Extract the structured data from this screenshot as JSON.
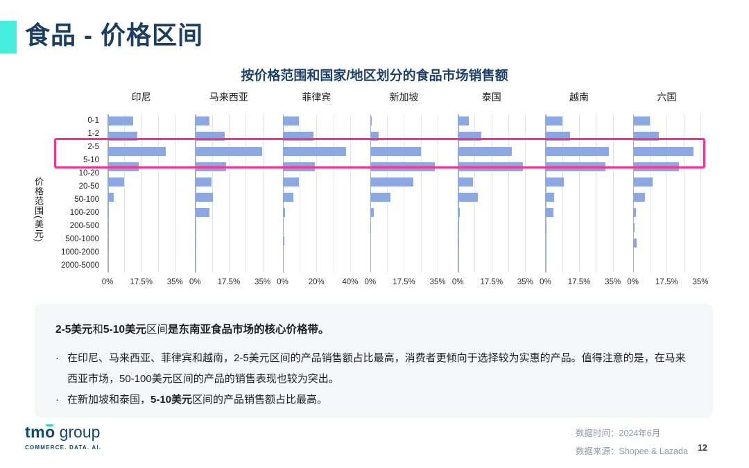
{
  "slide": {
    "title": "食品 - 价格区间",
    "chart_title": "按价格范围和国家/地区划分的食品市场销售额",
    "page_number": "12"
  },
  "chart_data": {
    "type": "bar",
    "orientation": "horizontal",
    "title": "按价格范围和国家/地区划分的食品市场销售额",
    "ylabel": "价格范围(美元)",
    "unit": "%",
    "grid": true,
    "categories": [
      "0-1",
      "1-2",
      "2-5",
      "5-10",
      "10-20",
      "20-50",
      "50-100",
      "100-200",
      "200-500",
      "500-1000",
      "1000-2000",
      "2000-5000"
    ],
    "series": [
      {
        "name": "印尼",
        "xlim": [
          0,
          35
        ],
        "ticks": [
          "0%",
          "17.5%",
          "35%"
        ],
        "values": [
          13.3,
          15.4,
          30.4,
          16.2,
          8.7,
          3.2,
          0.7,
          0.3,
          0.4,
          0,
          0,
          0
        ]
      },
      {
        "name": "马来西亚",
        "xlim": [
          0,
          35
        ],
        "ticks": [
          "0%",
          "17.5%",
          "35%"
        ],
        "values": [
          7.4,
          15.2,
          34.8,
          16.1,
          8.7,
          9.4,
          7.5,
          0.4,
          0.5,
          0,
          0,
          0
        ]
      },
      {
        "name": "菲律宾",
        "xlim": [
          0,
          40
        ],
        "ticks": [
          "0%",
          "20%",
          "40%"
        ],
        "values": [
          9.7,
          18.2,
          37.5,
          18.9,
          9.5,
          6.5,
          1.4,
          0,
          1.0,
          0,
          0,
          0
        ]
      },
      {
        "name": "新加坡",
        "xlim": [
          0,
          35
        ],
        "ticks": [
          "0%",
          "17.5%",
          "35%"
        ],
        "values": [
          0.7,
          4.3,
          26.3,
          33.5,
          22.2,
          10.6,
          1.7,
          0.4,
          0,
          0,
          0,
          0
        ]
      },
      {
        "name": "泰国",
        "xlim": [
          0,
          35
        ],
        "ticks": [
          "0%",
          "17.5%",
          "35%"
        ],
        "values": [
          5.8,
          12.3,
          28.0,
          33.7,
          8.0,
          10.4,
          1.2,
          0.3,
          0.5,
          0,
          0,
          0
        ]
      },
      {
        "name": "越南",
        "xlim": [
          0,
          35
        ],
        "ticks": [
          "0%",
          "17.5%",
          "35%"
        ],
        "values": [
          8.7,
          12.7,
          33.0,
          31.0,
          9.6,
          4.4,
          4.2,
          0.5,
          0,
          0,
          0,
          0
        ]
      },
      {
        "name": "六国",
        "xlim": [
          0,
          35
        ],
        "ticks": [
          "0%",
          "17.5%",
          "35%"
        ],
        "values": [
          8.9,
          13.6,
          31.3,
          24.0,
          10.3,
          6.4,
          1.5,
          0.7,
          1.8,
          0,
          0,
          0
        ]
      }
    ],
    "highlight": {
      "rows": [
        "2-5",
        "5-10"
      ],
      "color": "#FF2E8E"
    },
    "legend": "none"
  },
  "insights": {
    "headline": [
      {
        "t": "2-5美元",
        "b": true
      },
      {
        "t": "和",
        "b": false
      },
      {
        "t": "5-10美元",
        "b": true
      },
      {
        "t": "区间",
        "b": false
      },
      {
        "t": "是东南亚食品市场的核心价格带。",
        "b": true
      }
    ],
    "bullets": [
      {
        "segments": [
          {
            "t": "在印尼、马来西亚、菲律宾和越南，2-5美元区间的产品销售额占比最高，消费者更倾向于选择较为实惠的产品。值得注意的是，在马来西亚市场，50-100美元区间的产品的销售表现也较为突出。",
            "b": false
          }
        ]
      },
      {
        "segments": [
          {
            "t": "在新加坡和泰国，",
            "b": false
          },
          {
            "t": "5-10美元",
            "b": true
          },
          {
            "t": "区间的产品销售额占比最高。",
            "b": false
          }
        ]
      }
    ]
  },
  "footer": {
    "logo_tm": "tm",
    "logo_o": "o",
    "logo_group": " group",
    "logo_tagline": "COMMERCE. DATA. AI.",
    "data_time": "数据时间：2024年6月",
    "data_source": "数据来源：Shopee & Lazada"
  },
  "colors": {
    "accent_teal": "#45EDDC",
    "title_navy": "#1C3E63",
    "bar_blue": "#8CA8E2",
    "highlight_pink": "#FF2E8E",
    "insight_bg": "#F4F6F8",
    "footer_gray": "#8B9AAB"
  }
}
